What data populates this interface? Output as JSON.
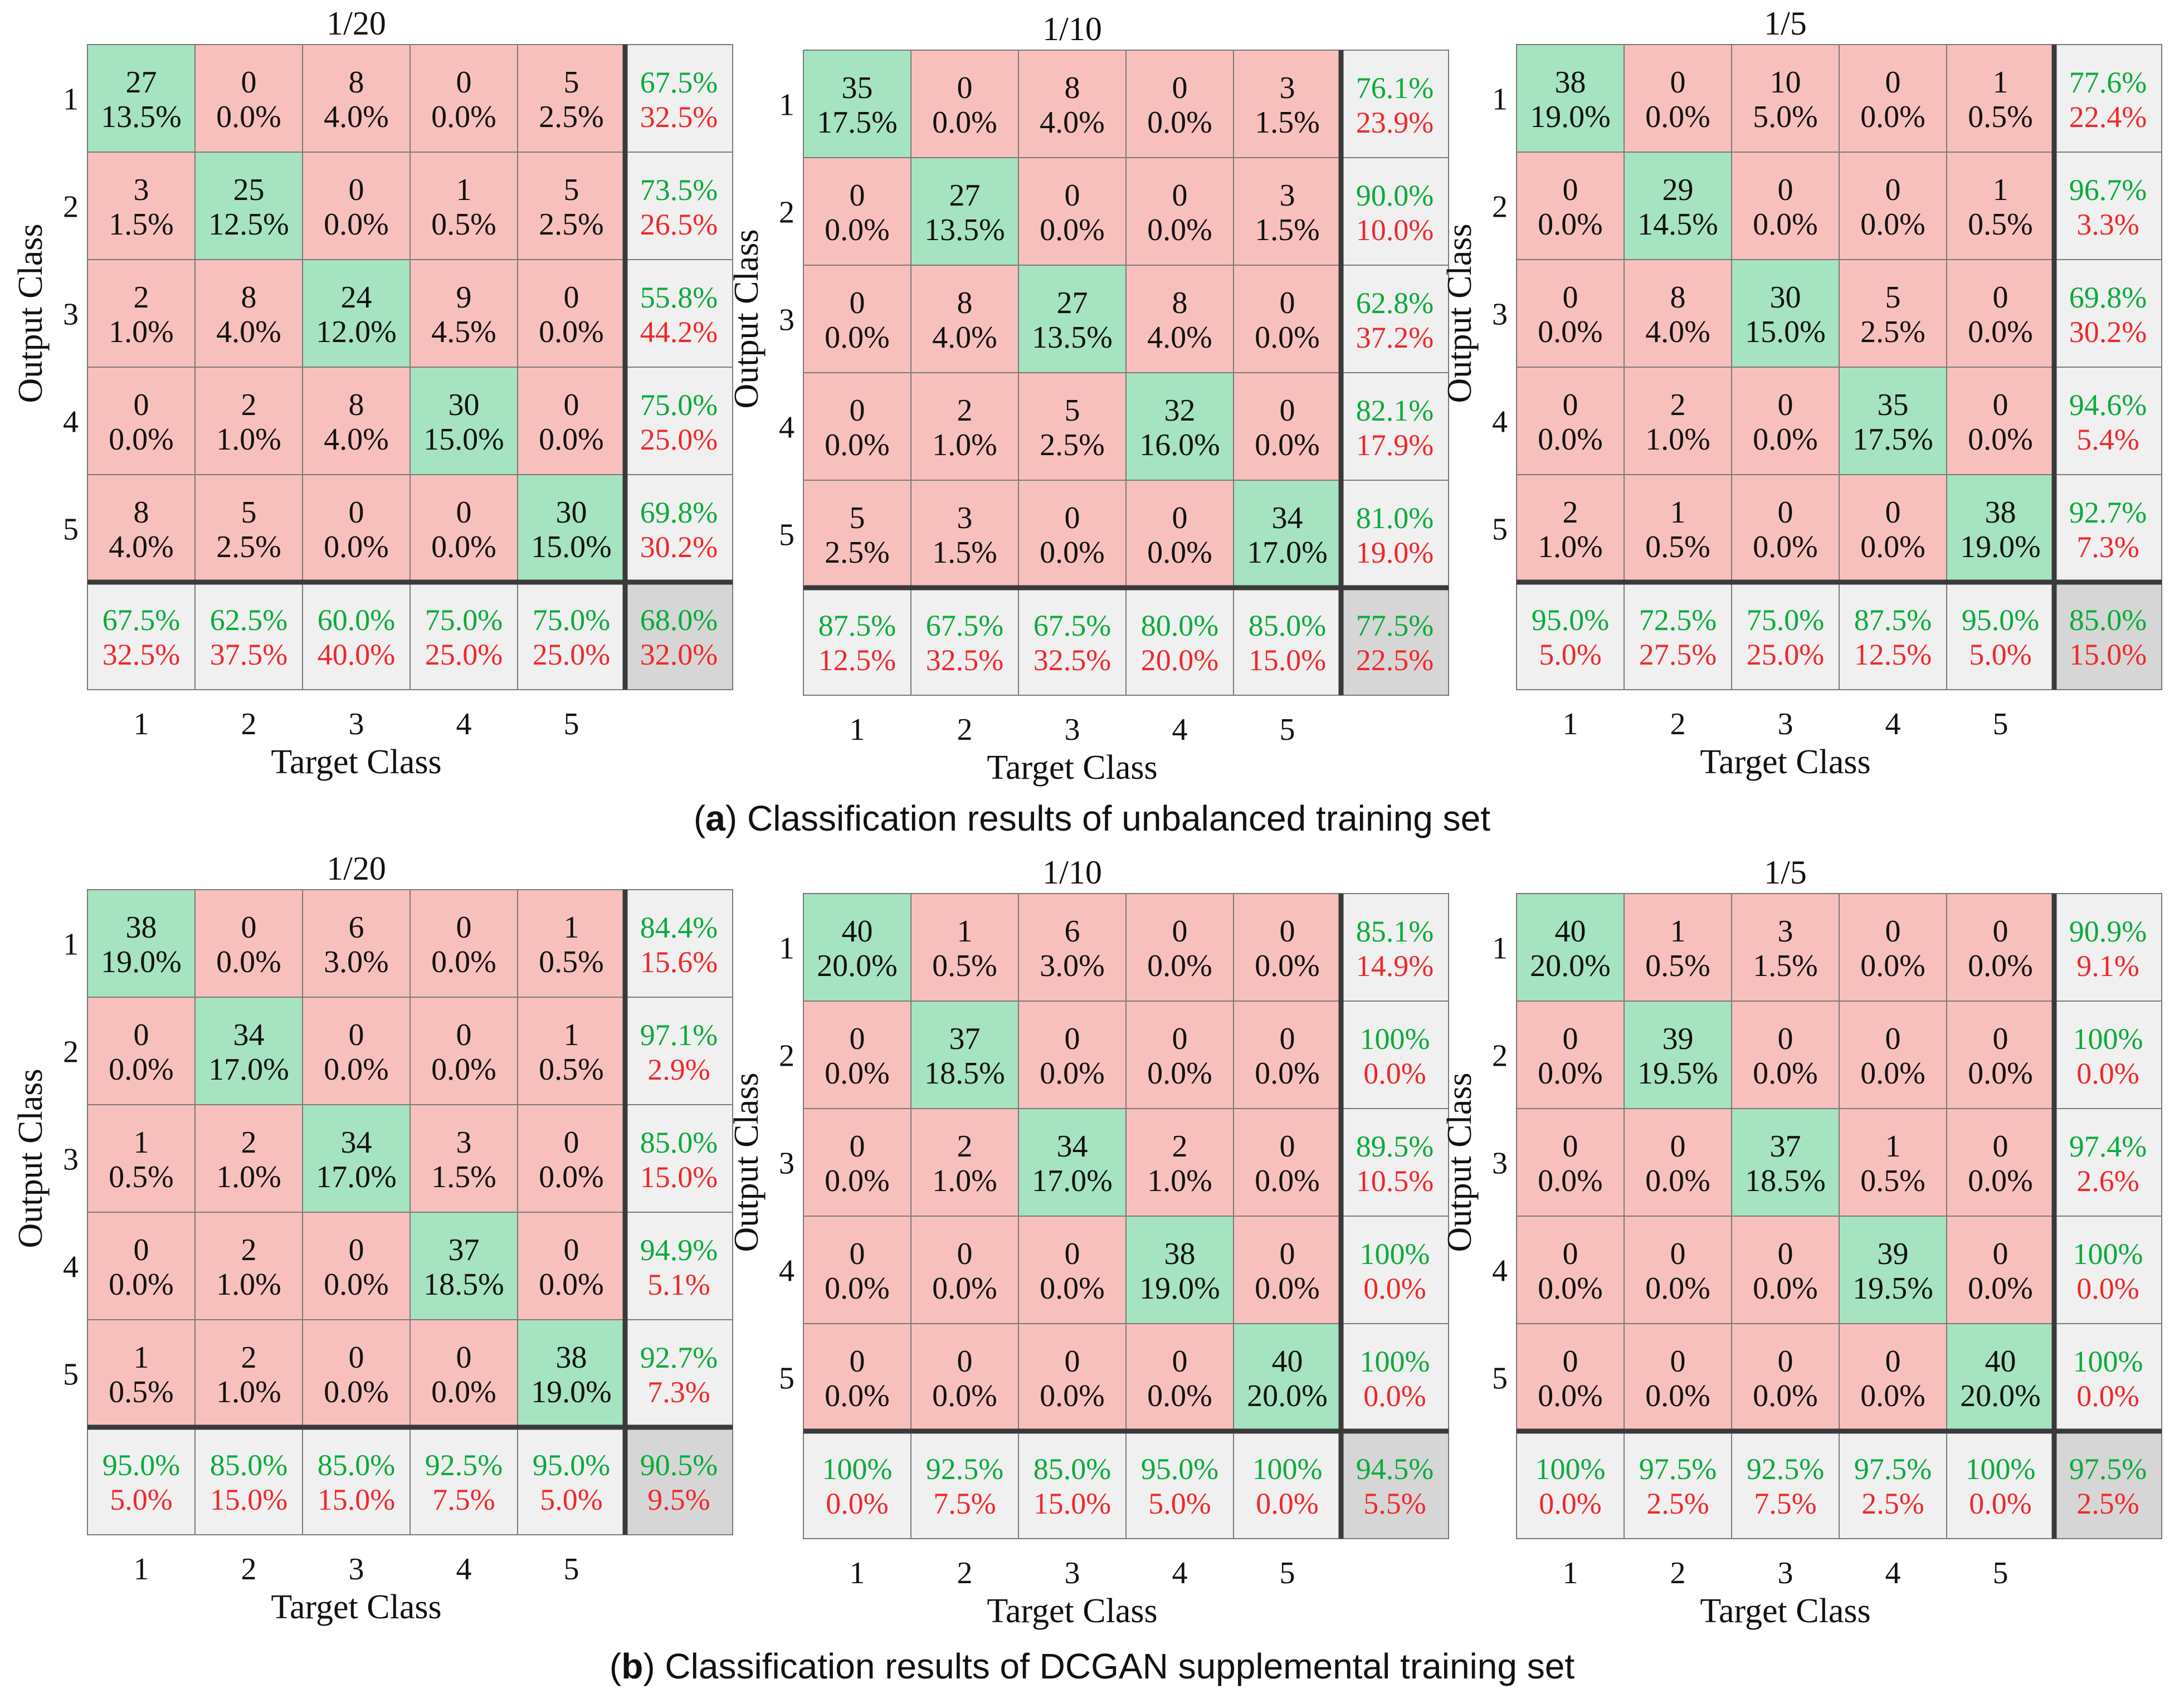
{
  "captions": [
    {
      "letter": "a",
      "text": ") Classification results of unbalanced training set"
    },
    {
      "letter": "b",
      "text": ") Classification results of DCGAN supplemental training set"
    }
  ],
  "colors": {
    "correct_cell": "#a6e3c1",
    "error_cell": "#f8c0bd",
    "summary_cell": "#f0f0f0",
    "total_cell": "#d6d6d6",
    "green_text": "#0bab3b",
    "red_text": "#f0282a",
    "grid": "#7a7a7a",
    "divider": "#3a3a3a"
  },
  "chart_data": [
    {
      "type": "heatmap",
      "group": "a",
      "title": "1/20",
      "xlabel": "Target Class",
      "ylabel": "Output Class",
      "classes": [
        "1",
        "2",
        "3",
        "4",
        "5"
      ],
      "matrix": [
        [
          27,
          0,
          8,
          0,
          5
        ],
        [
          3,
          25,
          0,
          1,
          5
        ],
        [
          2,
          8,
          24,
          9,
          0
        ],
        [
          0,
          2,
          8,
          30,
          0
        ],
        [
          8,
          5,
          0,
          0,
          30
        ]
      ],
      "matrix_pct": [
        [
          "13.5%",
          "0.0%",
          "4.0%",
          "0.0%",
          "2.5%"
        ],
        [
          "1.5%",
          "12.5%",
          "0.0%",
          "0.5%",
          "2.5%"
        ],
        [
          "1.0%",
          "4.0%",
          "12.0%",
          "4.5%",
          "0.0%"
        ],
        [
          "0.0%",
          "1.0%",
          "4.0%",
          "15.0%",
          "0.0%"
        ],
        [
          "4.0%",
          "2.5%",
          "0.0%",
          "0.0%",
          "15.0%"
        ]
      ],
      "row_summary": [
        [
          "67.5%",
          "32.5%"
        ],
        [
          "73.5%",
          "26.5%"
        ],
        [
          "55.8%",
          "44.2%"
        ],
        [
          "75.0%",
          "25.0%"
        ],
        [
          "69.8%",
          "30.2%"
        ]
      ],
      "col_summary": [
        [
          "67.5%",
          "32.5%"
        ],
        [
          "62.5%",
          "37.5%"
        ],
        [
          "60.0%",
          "40.0%"
        ],
        [
          "75.0%",
          "25.0%"
        ],
        [
          "75.0%",
          "25.0%"
        ]
      ],
      "overall": [
        "68.0%",
        "32.0%"
      ]
    },
    {
      "type": "heatmap",
      "group": "a",
      "title": "1/10",
      "xlabel": "Target Class",
      "ylabel": "Output Class",
      "classes": [
        "1",
        "2",
        "3",
        "4",
        "5"
      ],
      "matrix": [
        [
          35,
          0,
          8,
          0,
          3
        ],
        [
          0,
          27,
          0,
          0,
          3
        ],
        [
          0,
          8,
          27,
          8,
          0
        ],
        [
          0,
          2,
          5,
          32,
          0
        ],
        [
          5,
          3,
          0,
          0,
          34
        ]
      ],
      "matrix_pct": [
        [
          "17.5%",
          "0.0%",
          "4.0%",
          "0.0%",
          "1.5%"
        ],
        [
          "0.0%",
          "13.5%",
          "0.0%",
          "0.0%",
          "1.5%"
        ],
        [
          "0.0%",
          "4.0%",
          "13.5%",
          "4.0%",
          "0.0%"
        ],
        [
          "0.0%",
          "1.0%",
          "2.5%",
          "16.0%",
          "0.0%"
        ],
        [
          "2.5%",
          "1.5%",
          "0.0%",
          "0.0%",
          "17.0%"
        ]
      ],
      "row_summary": [
        [
          "76.1%",
          "23.9%"
        ],
        [
          "90.0%",
          "10.0%"
        ],
        [
          "62.8%",
          "37.2%"
        ],
        [
          "82.1%",
          "17.9%"
        ],
        [
          "81.0%",
          "19.0%"
        ]
      ],
      "col_summary": [
        [
          "87.5%",
          "12.5%"
        ],
        [
          "67.5%",
          "32.5%"
        ],
        [
          "67.5%",
          "32.5%"
        ],
        [
          "80.0%",
          "20.0%"
        ],
        [
          "85.0%",
          "15.0%"
        ]
      ],
      "overall": [
        "77.5%",
        "22.5%"
      ]
    },
    {
      "type": "heatmap",
      "group": "a",
      "title": "1/5",
      "xlabel": "Target Class",
      "ylabel": "Output Class",
      "classes": [
        "1",
        "2",
        "3",
        "4",
        "5"
      ],
      "matrix": [
        [
          38,
          0,
          10,
          0,
          1
        ],
        [
          0,
          29,
          0,
          0,
          1
        ],
        [
          0,
          8,
          30,
          5,
          0
        ],
        [
          0,
          2,
          0,
          35,
          0
        ],
        [
          2,
          1,
          0,
          0,
          38
        ]
      ],
      "matrix_pct": [
        [
          "19.0%",
          "0.0%",
          "5.0%",
          "0.0%",
          "0.5%"
        ],
        [
          "0.0%",
          "14.5%",
          "0.0%",
          "0.0%",
          "0.5%"
        ],
        [
          "0.0%",
          "4.0%",
          "15.0%",
          "2.5%",
          "0.0%"
        ],
        [
          "0.0%",
          "1.0%",
          "0.0%",
          "17.5%",
          "0.0%"
        ],
        [
          "1.0%",
          "0.5%",
          "0.0%",
          "0.0%",
          "19.0%"
        ]
      ],
      "row_summary": [
        [
          "77.6%",
          "22.4%"
        ],
        [
          "96.7%",
          "3.3%"
        ],
        [
          "69.8%",
          "30.2%"
        ],
        [
          "94.6%",
          "5.4%"
        ],
        [
          "92.7%",
          "7.3%"
        ]
      ],
      "col_summary": [
        [
          "95.0%",
          "5.0%"
        ],
        [
          "72.5%",
          "27.5%"
        ],
        [
          "75.0%",
          "25.0%"
        ],
        [
          "87.5%",
          "12.5%"
        ],
        [
          "95.0%",
          "5.0%"
        ]
      ],
      "overall": [
        "85.0%",
        "15.0%"
      ]
    },
    {
      "type": "heatmap",
      "group": "b",
      "title": "1/20",
      "xlabel": "Target Class",
      "ylabel": "Output Class",
      "classes": [
        "1",
        "2",
        "3",
        "4",
        "5"
      ],
      "matrix": [
        [
          38,
          0,
          6,
          0,
          1
        ],
        [
          0,
          34,
          0,
          0,
          1
        ],
        [
          1,
          2,
          34,
          3,
          0
        ],
        [
          0,
          2,
          0,
          37,
          0
        ],
        [
          1,
          2,
          0,
          0,
          38
        ]
      ],
      "matrix_pct": [
        [
          "19.0%",
          "0.0%",
          "3.0%",
          "0.0%",
          "0.5%"
        ],
        [
          "0.0%",
          "17.0%",
          "0.0%",
          "0.0%",
          "0.5%"
        ],
        [
          "0.5%",
          "1.0%",
          "17.0%",
          "1.5%",
          "0.0%"
        ],
        [
          "0.0%",
          "1.0%",
          "0.0%",
          "18.5%",
          "0.0%"
        ],
        [
          "0.5%",
          "1.0%",
          "0.0%",
          "0.0%",
          "19.0%"
        ]
      ],
      "row_summary": [
        [
          "84.4%",
          "15.6%"
        ],
        [
          "97.1%",
          "2.9%"
        ],
        [
          "85.0%",
          "15.0%"
        ],
        [
          "94.9%",
          "5.1%"
        ],
        [
          "92.7%",
          "7.3%"
        ]
      ],
      "col_summary": [
        [
          "95.0%",
          "5.0%"
        ],
        [
          "85.0%",
          "15.0%"
        ],
        [
          "85.0%",
          "15.0%"
        ],
        [
          "92.5%",
          "7.5%"
        ],
        [
          "95.0%",
          "5.0%"
        ]
      ],
      "overall": [
        "90.5%",
        "9.5%"
      ]
    },
    {
      "type": "heatmap",
      "group": "b",
      "title": "1/10",
      "xlabel": "Target Class",
      "ylabel": "Output Class",
      "classes": [
        "1",
        "2",
        "3",
        "4",
        "5"
      ],
      "matrix": [
        [
          40,
          1,
          6,
          0,
          0
        ],
        [
          0,
          37,
          0,
          0,
          0
        ],
        [
          0,
          2,
          34,
          2,
          0
        ],
        [
          0,
          0,
          0,
          38,
          0
        ],
        [
          0,
          0,
          0,
          0,
          40
        ]
      ],
      "matrix_pct": [
        [
          "20.0%",
          "0.5%",
          "3.0%",
          "0.0%",
          "0.0%"
        ],
        [
          "0.0%",
          "18.5%",
          "0.0%",
          "0.0%",
          "0.0%"
        ],
        [
          "0.0%",
          "1.0%",
          "17.0%",
          "1.0%",
          "0.0%"
        ],
        [
          "0.0%",
          "0.0%",
          "0.0%",
          "19.0%",
          "0.0%"
        ],
        [
          "0.0%",
          "0.0%",
          "0.0%",
          "0.0%",
          "20.0%"
        ]
      ],
      "row_summary": [
        [
          "85.1%",
          "14.9%"
        ],
        [
          "100%",
          "0.0%"
        ],
        [
          "89.5%",
          "10.5%"
        ],
        [
          "100%",
          "0.0%"
        ],
        [
          "100%",
          "0.0%"
        ]
      ],
      "col_summary": [
        [
          "100%",
          "0.0%"
        ],
        [
          "92.5%",
          "7.5%"
        ],
        [
          "85.0%",
          "15.0%"
        ],
        [
          "95.0%",
          "5.0%"
        ],
        [
          "100%",
          "0.0%"
        ]
      ],
      "overall": [
        "94.5%",
        "5.5%"
      ]
    },
    {
      "type": "heatmap",
      "group": "b",
      "title": "1/5",
      "xlabel": "Target Class",
      "ylabel": "Output Class",
      "classes": [
        "1",
        "2",
        "3",
        "4",
        "5"
      ],
      "matrix": [
        [
          40,
          1,
          3,
          0,
          0
        ],
        [
          0,
          39,
          0,
          0,
          0
        ],
        [
          0,
          0,
          37,
          1,
          0
        ],
        [
          0,
          0,
          0,
          39,
          0
        ],
        [
          0,
          0,
          0,
          0,
          40
        ]
      ],
      "matrix_pct": [
        [
          "20.0%",
          "0.5%",
          "1.5%",
          "0.0%",
          "0.0%"
        ],
        [
          "0.0%",
          "19.5%",
          "0.0%",
          "0.0%",
          "0.0%"
        ],
        [
          "0.0%",
          "0.0%",
          "18.5%",
          "0.5%",
          "0.0%"
        ],
        [
          "0.0%",
          "0.0%",
          "0.0%",
          "19.5%",
          "0.0%"
        ],
        [
          "0.0%",
          "0.0%",
          "0.0%",
          "0.0%",
          "20.0%"
        ]
      ],
      "row_summary": [
        [
          "90.9%",
          "9.1%"
        ],
        [
          "100%",
          "0.0%"
        ],
        [
          "97.4%",
          "2.6%"
        ],
        [
          "100%",
          "0.0%"
        ],
        [
          "100%",
          "0.0%"
        ]
      ],
      "col_summary": [
        [
          "100%",
          "0.0%"
        ],
        [
          "97.5%",
          "2.5%"
        ],
        [
          "92.5%",
          "7.5%"
        ],
        [
          "97.5%",
          "2.5%"
        ],
        [
          "100%",
          "0.0%"
        ]
      ],
      "overall": [
        "97.5%",
        "2.5%"
      ]
    }
  ]
}
